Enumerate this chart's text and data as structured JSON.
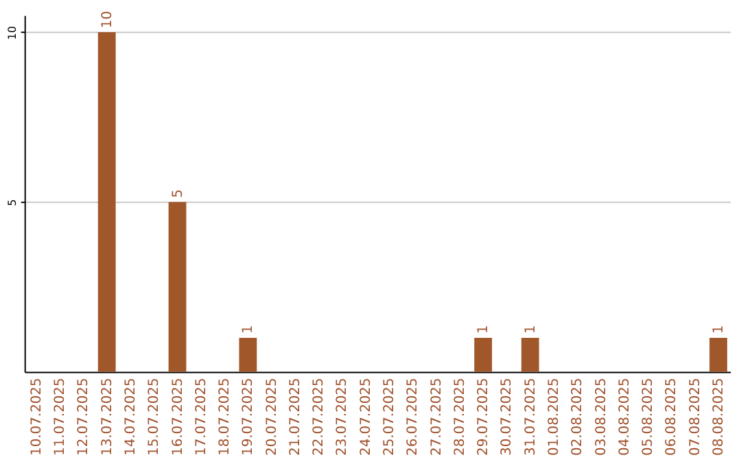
{
  "chart_data": {
    "type": "bar",
    "categories": [
      "10.07.2025",
      "11.07.2025",
      "12.07.2025",
      "13.07.2025",
      "14.07.2025",
      "15.07.2025",
      "16.07.2025",
      "17.07.2025",
      "18.07.2025",
      "19.07.2025",
      "20.07.2025",
      "21.07.2025",
      "22.07.2025",
      "23.07.2025",
      "24.07.2025",
      "25.07.2025",
      "26.07.2025",
      "27.07.2025",
      "28.07.2025",
      "29.07.2025",
      "30.07.2025",
      "31.07.2025",
      "01.08.2025",
      "02.08.2025",
      "03.08.2025",
      "04.08.2025",
      "05.08.2025",
      "06.08.2025",
      "07.08.2025",
      "08.08.2025"
    ],
    "values": [
      0,
      0,
      0,
      10,
      0,
      0,
      5,
      0,
      0,
      1,
      0,
      0,
      0,
      0,
      0,
      0,
      0,
      0,
      0,
      1,
      0,
      1,
      0,
      0,
      0,
      0,
      0,
      0,
      0,
      1
    ],
    "value_labels": [
      null,
      null,
      null,
      "10",
      null,
      null,
      "5",
      null,
      null,
      "1",
      null,
      null,
      null,
      null,
      null,
      null,
      null,
      null,
      null,
      "1",
      null,
      "1",
      null,
      null,
      null,
      null,
      null,
      null,
      null,
      "1"
    ],
    "color": "#a0572a",
    "ylim": [
      0,
      10.5
    ],
    "yticks": [
      5,
      10
    ],
    "grid": "y"
  }
}
